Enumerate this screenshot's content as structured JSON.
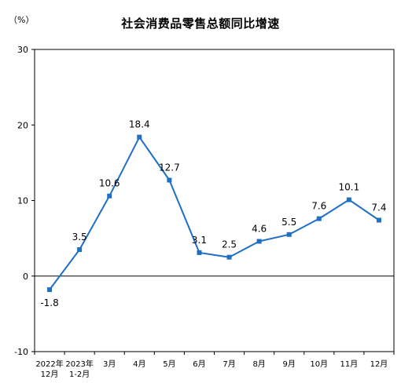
{
  "chart_data": {
    "type": "line",
    "title": "社会消费品零售总额同比增速",
    "unit": "（%）",
    "categories": [
      [
        "2022年",
        "12月"
      ],
      [
        "2023年",
        "1-2月"
      ],
      [
        "3月"
      ],
      [
        "4月"
      ],
      [
        "5月"
      ],
      [
        "6月"
      ],
      [
        "7月"
      ],
      [
        "8月"
      ],
      [
        "9月"
      ],
      [
        "10月"
      ],
      [
        "11月"
      ],
      [
        "12月"
      ]
    ],
    "values": [
      -1.8,
      3.5,
      10.6,
      18.4,
      12.7,
      3.1,
      2.5,
      4.6,
      5.5,
      7.6,
      10.1,
      7.4
    ],
    "value_labels": [
      "-1.8",
      "3.5",
      "10.6",
      "18.4",
      "12.7",
      "3.1",
      "2.5",
      "4.6",
      "5.5",
      "7.6",
      "10.1",
      "7.4"
    ],
    "yticks": [
      "30",
      "20",
      "10",
      "0",
      "-10"
    ],
    "ylim": [
      -10,
      30
    ],
    "color": "#1f6fc5",
    "grid": false
  }
}
